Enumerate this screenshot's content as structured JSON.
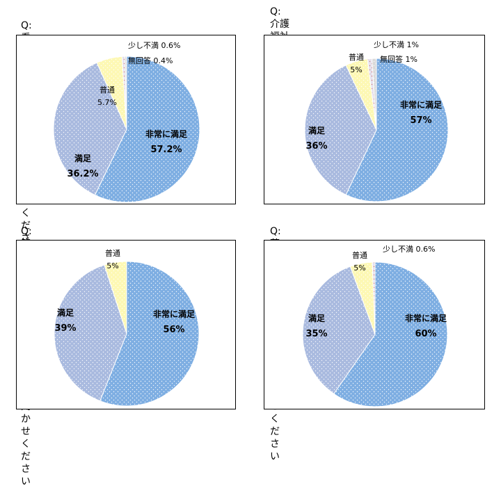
{
  "colors": {
    "very_satisfied": "#7eaee2",
    "satisfied": "#a9badf",
    "normal": "#fdf8b4",
    "slightly_dissatisfied": "#e5e2ee",
    "no_answer": "#d9d9d9",
    "dot": "#ffffff",
    "border": "#ffffff",
    "red_dots": "#d06a6a"
  },
  "chart_data": [
    {
      "type": "pie",
      "title": "Q:看護師の対応についてお聞かせください",
      "slices": [
        {
          "label": "非常に満足",
          "value": 57.2,
          "display": "57.2%",
          "style": "inside-bold",
          "color_key": "very_satisfied"
        },
        {
          "label": "満足",
          "value": 36.2,
          "display": "36.2%",
          "style": "inside-bold",
          "color_key": "satisfied"
        },
        {
          "label": "普通",
          "value": 5.7,
          "display": "5.7%",
          "style": "outside-stacked",
          "color_key": "normal"
        },
        {
          "label": "少し不満",
          "value": 0.6,
          "display": "0.6%",
          "style": "outside-inline",
          "color_key": "slightly_dissatisfied"
        },
        {
          "label": "無回答",
          "value": 0.4,
          "display": "0.4%",
          "style": "outside-inline",
          "color_key": "no_answer"
        }
      ]
    },
    {
      "type": "pie",
      "title": "Q:介護福祉士・看護助手の対応について\n　お聞かせください",
      "slices": [
        {
          "label": "非常に満足",
          "value": 57,
          "display": "57%",
          "style": "inside-bold",
          "color_key": "very_satisfied"
        },
        {
          "label": "満足",
          "value": 36,
          "display": "36%",
          "style": "inside-bold",
          "color_key": "satisfied"
        },
        {
          "label": "普通",
          "value": 5,
          "display": "5%",
          "style": "outside-stacked",
          "color_key": "normal"
        },
        {
          "label": "少し不満",
          "value": 1,
          "display": "1%",
          "style": "outside-inline",
          "color_key": "slightly_dissatisfied"
        },
        {
          "label": "無回答",
          "value": 1,
          "display": "1%",
          "style": "outside-inline",
          "color_key": "no_answer"
        }
      ]
    },
    {
      "type": "pie",
      "title": "Q:管理栄養士の対応についてお聞かせください",
      "slices": [
        {
          "label": "非常に満足",
          "value": 56,
          "display": "56%",
          "style": "inside-bold",
          "color_key": "very_satisfied"
        },
        {
          "label": "満足",
          "value": 39,
          "display": "39%",
          "style": "inside-bold",
          "color_key": "satisfied"
        },
        {
          "label": "普通",
          "value": 5,
          "display": "5%",
          "style": "outside-stacked",
          "color_key": "normal"
        }
      ]
    },
    {
      "type": "pie",
      "title": "Q:薬剤師の対応についてお聞かせください",
      "slices": [
        {
          "label": "非常に満足",
          "value": 60,
          "display": "60%",
          "style": "inside-bold",
          "color_key": "very_satisfied"
        },
        {
          "label": "満足",
          "value": 35,
          "display": "35%",
          "style": "inside-bold",
          "color_key": "satisfied"
        },
        {
          "label": "普通",
          "value": 5,
          "display": "5%",
          "style": "outside-stacked",
          "color_key": "normal"
        },
        {
          "label": "少し不満",
          "value": 0.6,
          "display": "0.6%",
          "style": "outside-inline",
          "color_key": "slightly_dissatisfied"
        }
      ]
    }
  ]
}
